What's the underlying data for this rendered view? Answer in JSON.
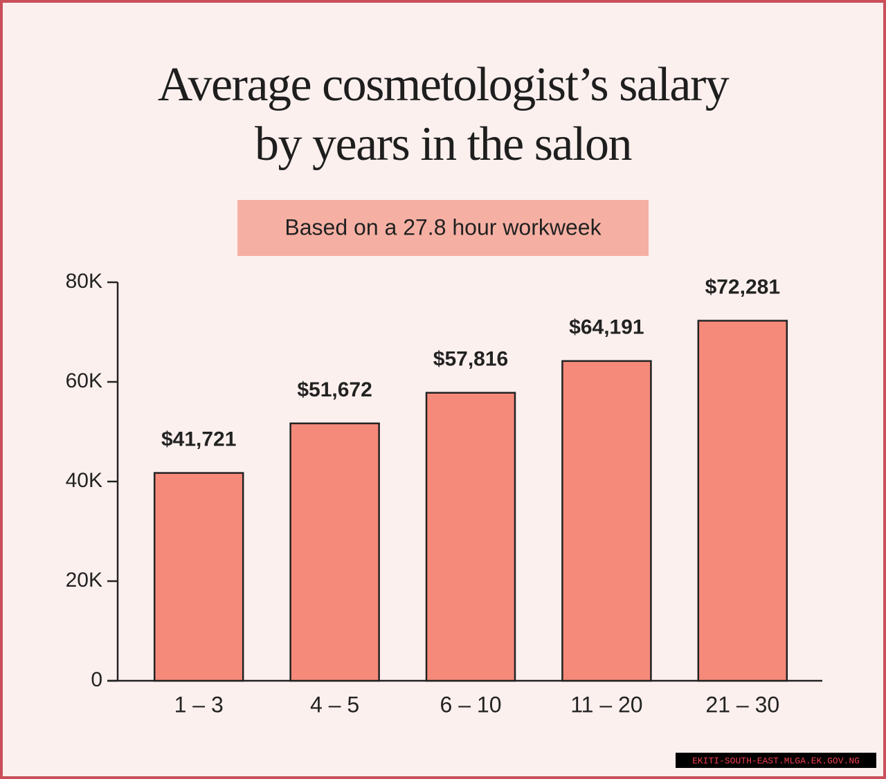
{
  "chart_data": {
    "type": "bar",
    "title": "Average cosmetologist’s salary by years in the salon",
    "subtitle": "Based on a 27.8 hour workweek",
    "categories": [
      "1 – 3",
      "4 – 5",
      "6 – 10",
      "11 – 20",
      "21 – 30"
    ],
    "values": [
      41721,
      51672,
      57816,
      64191,
      72281
    ],
    "value_labels": [
      "$41,721",
      "$51,672",
      "$57,816",
      "$64,191",
      "$72,281"
    ],
    "color": "#f58a7a",
    "ylim": [
      0,
      80000
    ],
    "yticks": [
      0,
      {
        "value": 20000,
        "label": "20K"
      },
      {
        "value": 40000,
        "label": "40K"
      },
      {
        "value": 60000,
        "label": "60K"
      },
      {
        "value": 80000,
        "label": "80K"
      }
    ],
    "watermark": "EKITI-SOUTH-EAST.MLGA.EK.GOV.NG"
  }
}
